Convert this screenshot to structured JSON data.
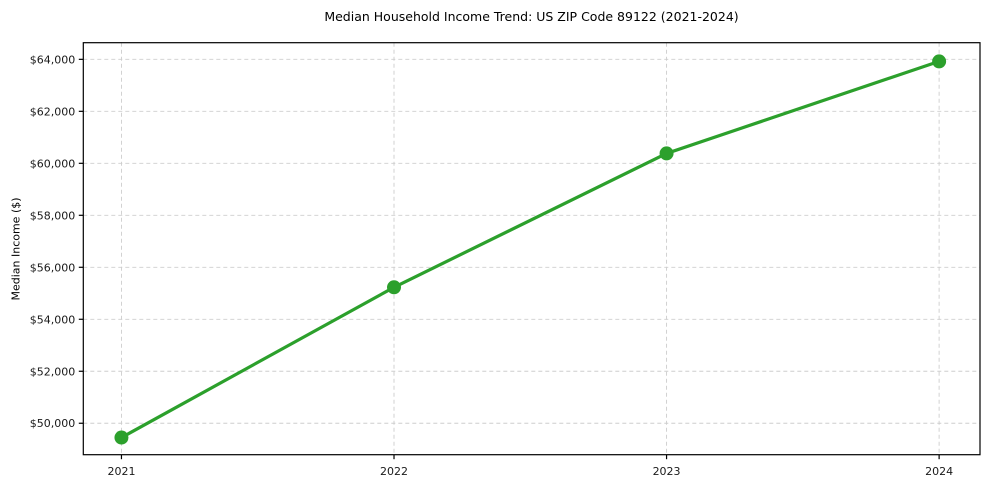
{
  "chart_data": {
    "type": "line",
    "title": "Median Household Income Trend: US ZIP Code 89122 (2021-2024)",
    "xlabel": "",
    "ylabel": "Median Income ($)",
    "x": [
      2021,
      2022,
      2023,
      2024
    ],
    "xtick_labels": [
      "2021",
      "2022",
      "2023",
      "2024"
    ],
    "values": [
      49450,
      55230,
      60380,
      63920
    ],
    "yticks": [
      50000,
      52000,
      54000,
      56000,
      58000,
      60000,
      62000,
      64000
    ],
    "ytick_labels": [
      "$50,000",
      "$52,000",
      "$54,000",
      "$56,000",
      "$58,000",
      "$60,000",
      "$62,000",
      "$64,000"
    ],
    "xlim": [
      2020.86,
      2024.15
    ],
    "ylim": [
      48790,
      64640
    ],
    "grid": true,
    "grid_style": "dashed",
    "legend": "none",
    "marker": "circle",
    "colors": {
      "line": "#2ca02c",
      "marker": "#2ca02c",
      "grid": "#cdcdcd",
      "axis": "#000000",
      "tick_text": "#1a1a1a",
      "background": "#ffffff"
    }
  }
}
